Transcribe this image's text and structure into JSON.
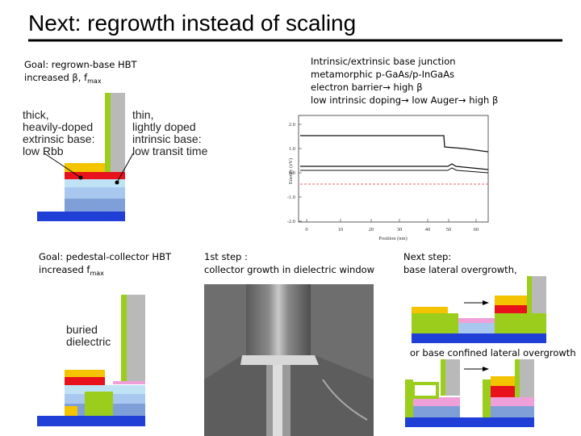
{
  "title": "Next: regrowth instead of scaling",
  "blocks": {
    "goal1": {
      "line1": "Goal: regrown-base HBT",
      "line2": "increased β, f",
      "line2_sub": "max"
    },
    "junction": [
      "Intrinsic/extrinsic base junction",
      "metamorphic p-GaAs/p-InGaAs",
      "electron barrier→ high β",
      "low intrinsic doping→ low Auger→ high β"
    ],
    "extrinsic_label": [
      "thick,",
      "heavily-doped",
      "extrinsic base:",
      "low Rbb"
    ],
    "intrinsic_label": [
      "thin,",
      "lightly doped",
      "intrinsic base:",
      "low transit time"
    ],
    "goal2": {
      "line1": "Goal: pedestal-collector HBT",
      "line2": "increased  f",
      "line2_sub": "max"
    },
    "dielectric_label": [
      "buried",
      "dielectric"
    ],
    "step1": [
      "1st step :",
      "collector growth in dielectric window"
    ],
    "step2": [
      "Next step:",
      "base lateral overgrowth,"
    ],
    "alt_step": "or base confined lateral overgrowth"
  },
  "plot": {
    "y_label": "Energy (eV)",
    "x_label": "Position (nm)",
    "yticks": [
      "2.0",
      "1.0",
      "0.0",
      "-1.0",
      "-2.0"
    ],
    "xticks": [
      "0",
      "10",
      "20",
      "30",
      "40",
      "50",
      "60"
    ]
  }
}
